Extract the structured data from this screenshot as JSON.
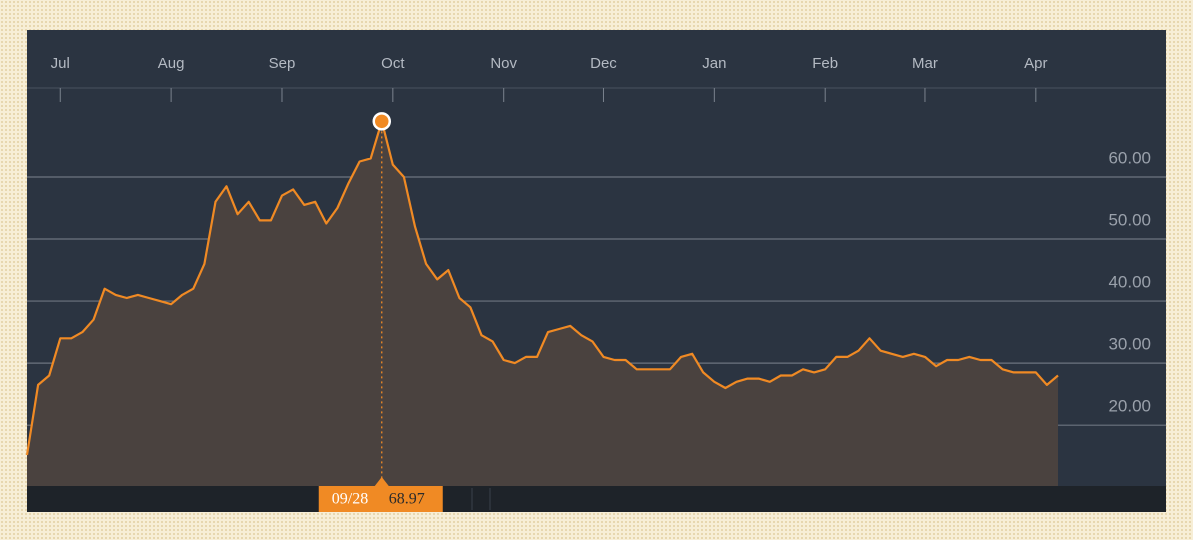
{
  "chart_data": {
    "type": "line",
    "categories": [
      null,
      null,
      null,
      "Jul",
      null,
      null,
      null,
      null,
      null,
      null,
      null,
      null,
      null,
      "Aug",
      null,
      null,
      null,
      null,
      null,
      null,
      null,
      null,
      null,
      "Sep",
      null,
      null,
      null,
      null,
      null,
      null,
      null,
      null,
      null,
      "Oct",
      null,
      null,
      null,
      null,
      null,
      null,
      null,
      null,
      null,
      "Nov",
      null,
      null,
      null,
      null,
      null,
      null,
      null,
      null,
      "Dec",
      null,
      null,
      null,
      null,
      null,
      null,
      null,
      null,
      null,
      "Jan",
      null,
      null,
      null,
      null,
      null,
      null,
      null,
      null,
      null,
      "Feb",
      null,
      null,
      null,
      null,
      null,
      null,
      null,
      null,
      "Mar",
      null,
      null,
      null,
      null,
      null,
      null,
      null,
      null,
      null,
      "Apr",
      null,
      null
    ],
    "values": [
      15.2,
      26.5,
      28,
      34,
      34,
      35,
      37,
      42,
      41,
      40.5,
      41,
      40.5,
      40,
      39.5,
      41,
      42,
      46,
      56,
      58.5,
      54,
      56,
      53,
      53,
      57,
      58,
      55.5,
      56,
      52.5,
      55,
      59,
      62.5,
      63,
      68.97,
      62,
      60,
      52,
      46,
      43.5,
      45,
      40.5,
      39,
      34.5,
      33.5,
      30.5,
      30,
      31,
      31,
      35,
      35.5,
      36,
      34.5,
      33.5,
      31,
      30.5,
      30.5,
      29,
      29,
      29,
      29,
      31,
      31.5,
      28.5,
      27,
      26,
      27,
      27.5,
      27.5,
      27,
      28,
      28,
      29,
      28.5,
      29,
      31,
      31,
      32,
      34,
      32,
      31.5,
      31,
      31.5,
      31,
      29.5,
      30.5,
      30.5,
      31,
      30.5,
      30.5,
      29,
      28.5,
      28.5,
      28.5,
      26.5,
      28
    ],
    "color": "#f08a24",
    "ylim": [
      10.2,
      71.6
    ],
    "yticks": [
      {
        "value": 20,
        "label": "20.00"
      },
      {
        "value": 30,
        "label": "30.00"
      },
      {
        "value": 40,
        "label": "40.00"
      },
      {
        "value": 50,
        "label": "50.00"
      },
      {
        "value": 60,
        "label": "60.00"
      }
    ],
    "grid": true,
    "tooltip": {
      "date": "09/28",
      "value": 68.97
    }
  }
}
